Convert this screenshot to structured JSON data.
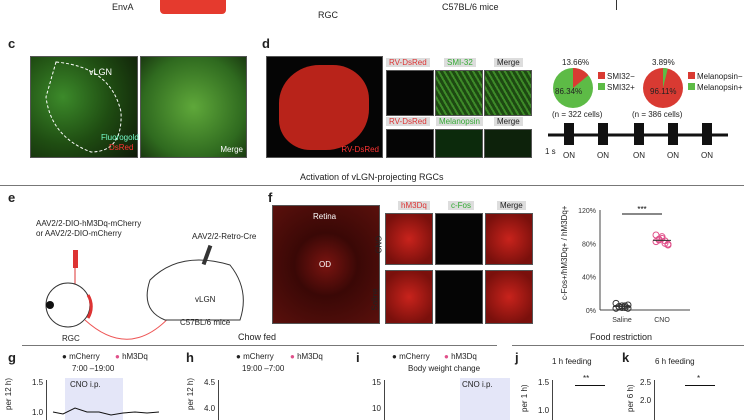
{
  "top": {
    "enva": "EnvA",
    "rgc": "RGC",
    "mice": "C57BL/6 mice"
  },
  "panel_c": {
    "label": "c",
    "vlgn": "vLGN",
    "merge": "Merge",
    "channel_green": "Fluorogold",
    "channel_red": "DsRed"
  },
  "panel_d": {
    "label": "d",
    "whole": "RV-DsRed",
    "row1": [
      "RV-DsRed",
      "SMI-32",
      "Merge"
    ],
    "row2": [
      "RV-DsRed",
      "Melanopsin",
      "Merge"
    ],
    "pie1": {
      "small": "13.66%",
      "big": "86.34%",
      "legend": [
        "SMI32−",
        "SMI32+"
      ],
      "n": "(n = 322 cells)",
      "colors": [
        "#d93a32",
        "#5dbb46"
      ]
    },
    "pie2": {
      "small": "3.89%",
      "big": "96.11%",
      "legend": [
        "Melanopsin−",
        "Melanopsin+"
      ],
      "n": "(n = 386 cells)",
      "colors": [
        "#d93a32",
        "#5dbb46"
      ]
    },
    "trace": {
      "scale": "1 s",
      "on": [
        "ON",
        "ON",
        "ON",
        "ON",
        "ON"
      ]
    }
  },
  "section1": "Activation of vLGN-projecting RGCs",
  "panel_e": {
    "label": "e",
    "virus1": "AAV2/2-DIO-hM3Dq-mCherry",
    "virus2": "or AAV2/2-DIO-mCherry",
    "virus3": "AAV2/2-Retro-Cre",
    "vlgn": "vLGN",
    "rgc": "RGC",
    "mice": "C57BL/6 mice"
  },
  "panel_f": {
    "label": "f",
    "retina": "Retina",
    "od": "OD",
    "cols": [
      "hM3Dq",
      "c-Fos",
      "Merge"
    ],
    "rows": [
      "CNO",
      "Saline"
    ]
  },
  "chart_data": {
    "type": "scatter",
    "ylabel": "c-Fos+/hM3Dq+ / hM3Dq+",
    "categories": [
      "Saline",
      "CNO"
    ],
    "yticks": [
      "0%",
      "40%",
      "80%",
      "120%"
    ],
    "ylim": [
      0,
      120
    ],
    "significance": "***",
    "series": [
      {
        "category": "Saline",
        "values": [
          2,
          4,
          5,
          3,
          6,
          8,
          4,
          3,
          5,
          2
        ],
        "color": "#333333"
      },
      {
        "category": "CNO",
        "values": [
          82,
          85,
          88,
          80,
          78,
          90,
          84,
          86,
          83,
          79
        ],
        "color": "#e0508a"
      }
    ]
  },
  "sections": {
    "chow": "Chow fed",
    "food": "Food restriction"
  },
  "panel_g": {
    "label": "g",
    "legend": [
      "mCherry",
      "hM3Dq"
    ],
    "time": "7:00 –19:00",
    "cno": "CNO i.p.",
    "ylabel": "per 12 h)",
    "yticks": [
      "1.5",
      "1.0"
    ]
  },
  "panel_h": {
    "label": "h",
    "legend": [
      "mCherry",
      "hM3Dq"
    ],
    "time": "19:00 –7:00",
    "ylabel": "per 12 h)",
    "yticks": [
      "4.5",
      "4.0"
    ]
  },
  "panel_i": {
    "label": "i",
    "legend": [
      "mCherry",
      "hM3Dq"
    ],
    "title": "Body weight change",
    "cno": "CNO i.p.",
    "yticks": [
      "15",
      "10"
    ]
  },
  "panel_j": {
    "label": "j",
    "title": "1 h feeding",
    "ylabel": "per 1 h)",
    "yticks": [
      "1.5",
      "1.0"
    ],
    "sig": "**"
  },
  "panel_k": {
    "label": "k",
    "title": "6 h feeding",
    "ylabel": "per 6 h)",
    "yticks": [
      "2.5",
      "2.0"
    ],
    "sig": "*"
  }
}
